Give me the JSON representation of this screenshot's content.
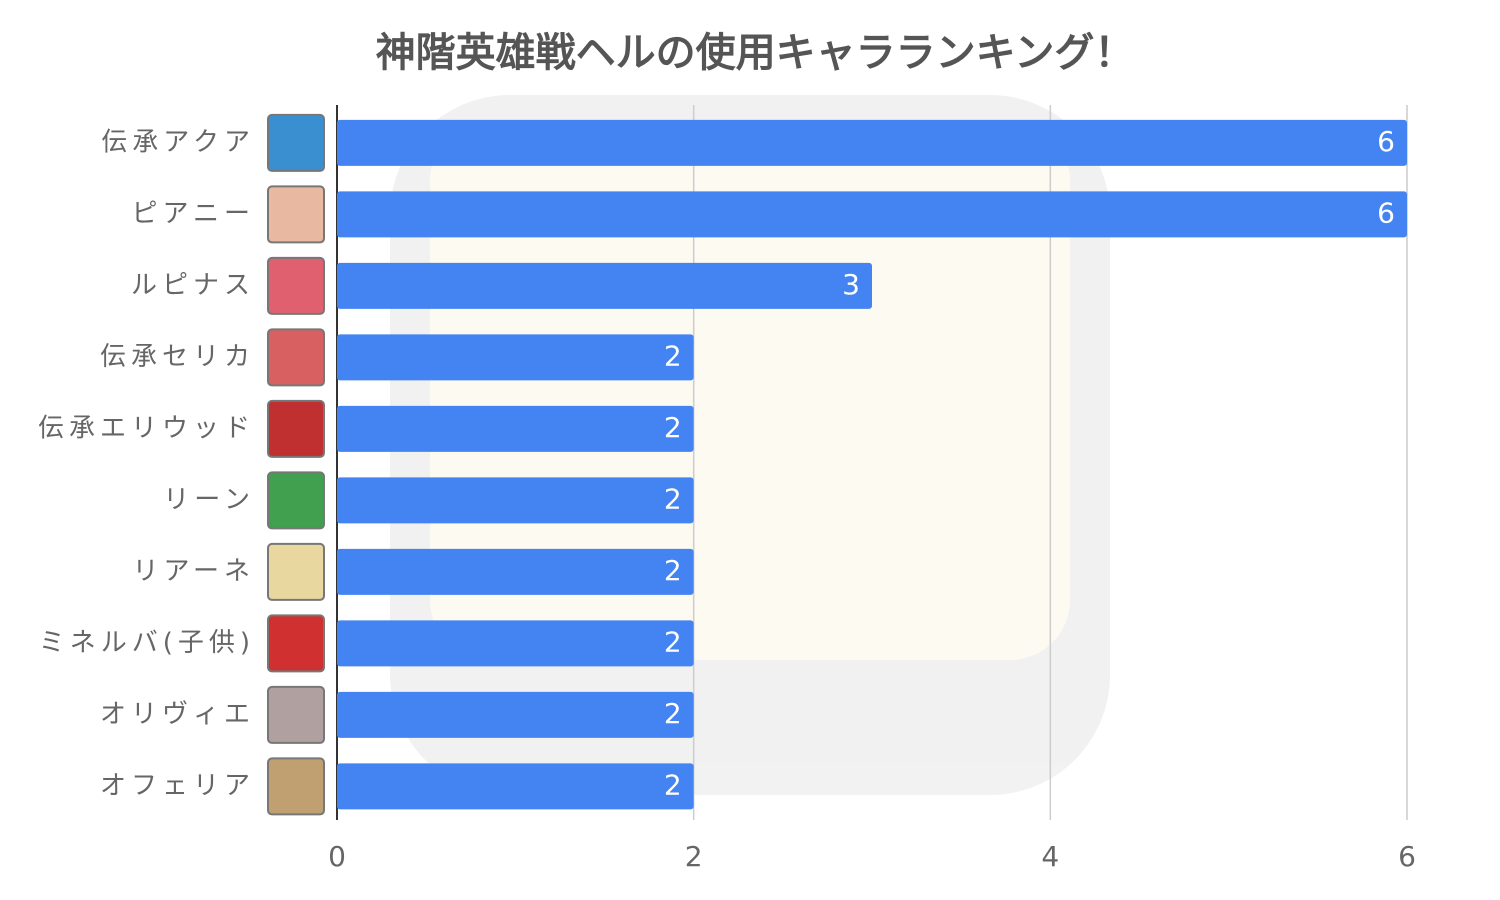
{
  "chart_data": {
    "type": "hbar",
    "title": "神階英雄戦ヘルの使用キャラランキング！",
    "categories": [
      "伝承アクア",
      "ピアニー",
      "ルピナス",
      "伝承セリカ",
      "伝承エリウッド",
      "リーン",
      "リアーネ",
      "ミネルバ(子供)",
      "オリヴィエ",
      "オフェリア"
    ],
    "values": [
      6,
      6,
      3,
      2,
      2,
      2,
      2,
      2,
      2,
      2
    ],
    "color": "#4484f2",
    "xlim": [
      0,
      6
    ],
    "xticks": [
      0,
      2,
      4,
      6
    ],
    "grid": true
  }
}
